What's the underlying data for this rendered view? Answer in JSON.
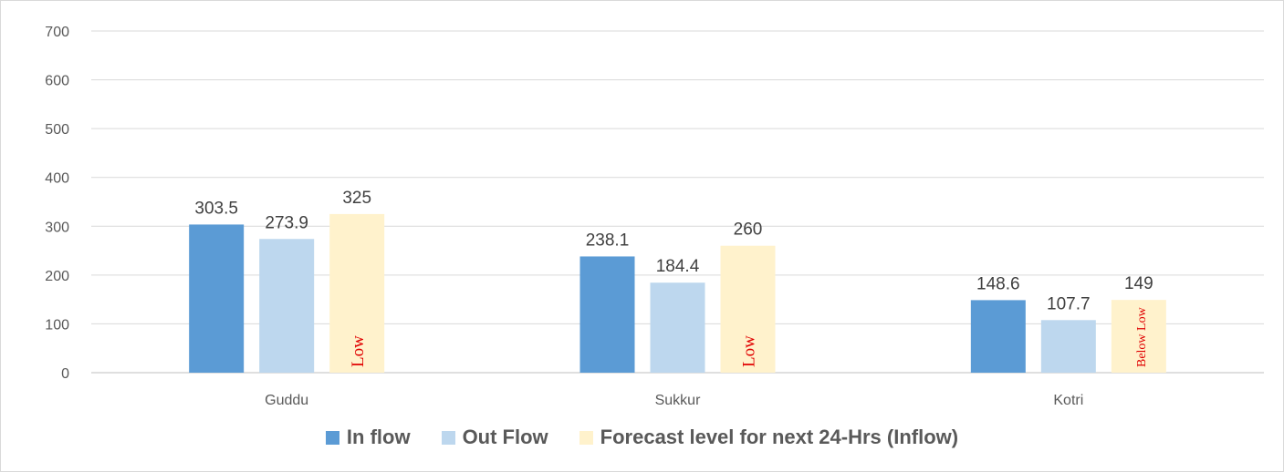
{
  "chart_data": {
    "type": "bar",
    "title": "",
    "xlabel": "",
    "ylabel": "",
    "ylim": [
      0,
      700
    ],
    "yticks": [
      0,
      100,
      200,
      300,
      400,
      500,
      600,
      700
    ],
    "grid": true,
    "legend_position": "bottom",
    "categories": [
      "Guddu",
      "Sukkur",
      "Kotri"
    ],
    "series": [
      {
        "name": "In flow",
        "color": "#5b9bd5",
        "values": [
          303.5,
          238.1,
          148.6
        ],
        "labels": [
          "303.5",
          "238.1",
          "148.6"
        ]
      },
      {
        "name": "Out Flow",
        "color": "#bdd7ee",
        "values": [
          273.9,
          184.4,
          107.7
        ],
        "labels": [
          "273.9",
          "184.4",
          "107.7"
        ]
      },
      {
        "name": "Forecast level for next 24-Hrs (Inflow)",
        "color": "#fff2cc",
        "values": [
          325,
          260,
          149
        ],
        "labels": [
          "325",
          "260",
          "149"
        ]
      }
    ],
    "bar_annotations": [
      "Low",
      "Low",
      "Below Low"
    ]
  }
}
